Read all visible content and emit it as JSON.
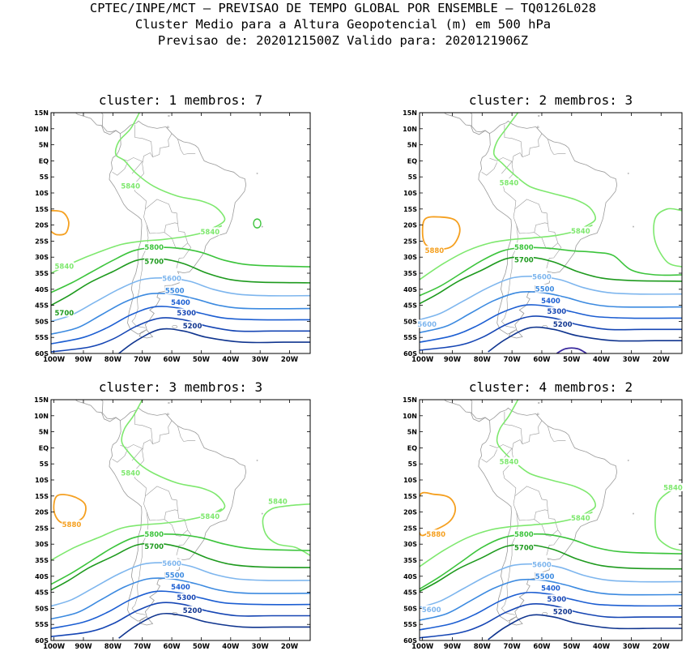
{
  "header": {
    "line1": "CPTEC/INPE/MCT — PREVISAO DE TEMPO GLOBAL POR ENSEMBLE — TQ0126L028",
    "line2": "Cluster Medio para a Altura Geopotencial (m) em 500 hPa",
    "line3": "Previsao de: 2020121500Z   Valido para: 2020121906Z"
  },
  "lat_labels": [
    "15N",
    "10N",
    "5N",
    "EQ",
    "5S",
    "10S",
    "15S",
    "20S",
    "25S",
    "30S",
    "35S",
    "40S",
    "45S",
    "50S",
    "55S",
    "60S"
  ],
  "lon_labels": [
    "100W",
    "90W",
    "80W",
    "70W",
    "60W",
    "50W",
    "40W",
    "30W",
    "20W"
  ],
  "colors": {
    "c5840": "#7ee86e",
    "c5800": "#3cc43c",
    "c5700": "#1e9a1e",
    "c5600": "#7eb6ee",
    "c5500": "#3c8ae0",
    "c5400": "#1c5ed2",
    "c5300": "#1646b4",
    "c5200": "#10358f",
    "c5100": "#3a2a9e",
    "c5880": "#f5a020",
    "coast": "#9a9a9a"
  },
  "panels": [
    {
      "title": "cluster:  1   membros:  7",
      "labels": {
        "c5840a": "5840",
        "c5840b": "5840",
        "c5840c": "5840",
        "c5800": "5800",
        "c5700": "5700",
        "c5700b": "5700",
        "c5600": "5600",
        "c5500": "5500",
        "c5400": "5400",
        "c5300": "5300",
        "c5200": "5200"
      }
    },
    {
      "title": "cluster:  2   membros:  3",
      "labels": {
        "c5840a": "5840",
        "c5840b": "5840",
        "c5880": "5880",
        "c5800": "5800",
        "c5700": "5700",
        "c5600": "5600",
        "c5500": "5500",
        "c5400": "5400",
        "c5300": "5300",
        "c5200": "5200",
        "c5600b": "5600"
      }
    },
    {
      "title": "cluster:  3   membros:  3",
      "labels": {
        "c5840a": "5840",
        "c5840b": "5840",
        "c5840c": "5840",
        "c5880": "5880",
        "c5800": "5800",
        "c5700": "5700",
        "c5600": "5600",
        "c5500": "5500",
        "c5400": "5400",
        "c5300": "5300",
        "c5200": "5200"
      }
    },
    {
      "title": "cluster:  4   membros:  2",
      "labels": {
        "c5840a": "5840",
        "c5840b": "5840",
        "c5840c": "5840",
        "c5880": "5880",
        "c5800": "5800",
        "c5700": "5700",
        "c5600": "5600",
        "c5500": "5500",
        "c5400": "5400",
        "c5300": "5300",
        "c5200": "5200",
        "c5600b": "5600"
      }
    }
  ]
}
